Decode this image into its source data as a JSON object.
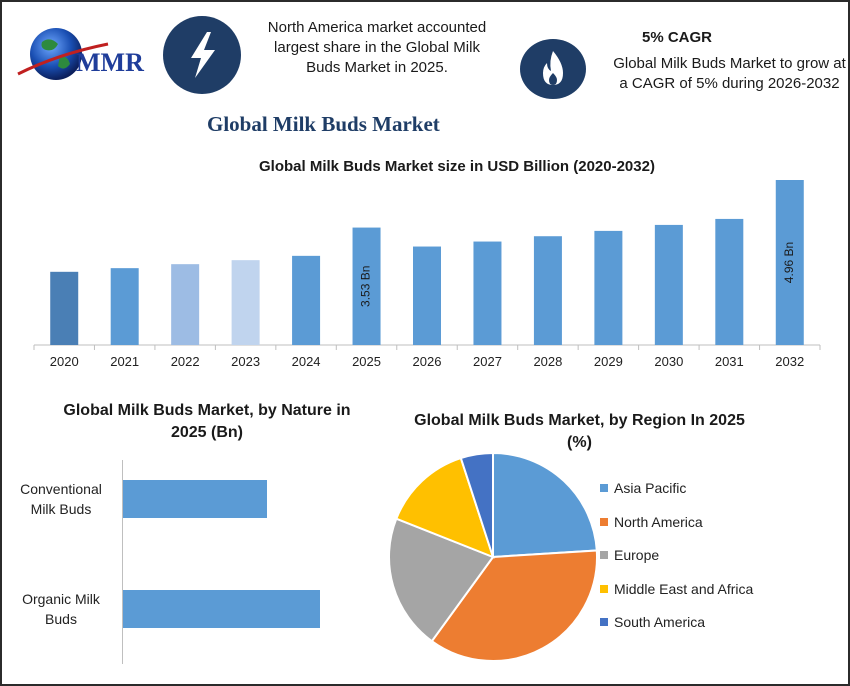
{
  "header": {
    "logo_text": "MMR",
    "lightning_icon": "lightning-icon",
    "flame_icon": "flame-icon",
    "region_note": "North America market accounted largest share in the Global Milk Buds Market in 2025.",
    "cagr_title": "5% CAGR",
    "cagr_note": "Global Milk Buds Market to grow at a CAGR of 5% during 2026-2032"
  },
  "main_title": "Global Milk Buds Market",
  "chart_data": [
    {
      "type": "bar",
      "title": "Global Milk Buds Market size in USD Billion (2020-2032)",
      "categories": [
        "2020",
        "2021",
        "2022",
        "2023",
        "2024",
        "2025",
        "2026",
        "2027",
        "2028",
        "2029",
        "2030",
        "2031",
        "2032"
      ],
      "values": [
        2.2,
        2.31,
        2.43,
        2.55,
        2.68,
        3.53,
        2.96,
        3.11,
        3.27,
        3.43,
        3.61,
        3.79,
        4.96
      ],
      "colors": [
        "#4a7fb5",
        "#5b9bd5",
        "#9dbce4",
        "#c0d4ee",
        "#5b9bd5",
        "#5b9bd5",
        "#5b9bd5",
        "#5b9bd5",
        "#5b9bd5",
        "#5b9bd5",
        "#5b9bd5",
        "#5b9bd5",
        "#5b9bd5"
      ],
      "data_labels": {
        "2025": "3.53 Bn",
        "2032": "4.96 Bn"
      }
    },
    {
      "type": "bar",
      "orientation": "horizontal",
      "title": "Global Milk Buds Market, by Nature in 2025 (Bn)",
      "categories": [
        "Conventional Milk Buds",
        "Organic Milk Buds"
      ],
      "category_lines": [
        [
          "Conventional",
          "Milk Buds"
        ],
        [
          "Organic Milk",
          "Buds"
        ]
      ],
      "values": [
        1.49,
        2.04
      ],
      "color": "#5b9bd5"
    },
    {
      "type": "pie",
      "title": "Global Milk Buds Market, by Region In 2025 (%)",
      "labels": [
        "Asia Pacific",
        "North America",
        "Europe",
        "Middle East and Africa",
        "South America"
      ],
      "values": [
        24,
        36,
        21,
        14,
        5
      ],
      "colors": [
        "#5b9bd5",
        "#ed7d31",
        "#a5a5a5",
        "#ffc000",
        "#4472c4"
      ]
    }
  ]
}
